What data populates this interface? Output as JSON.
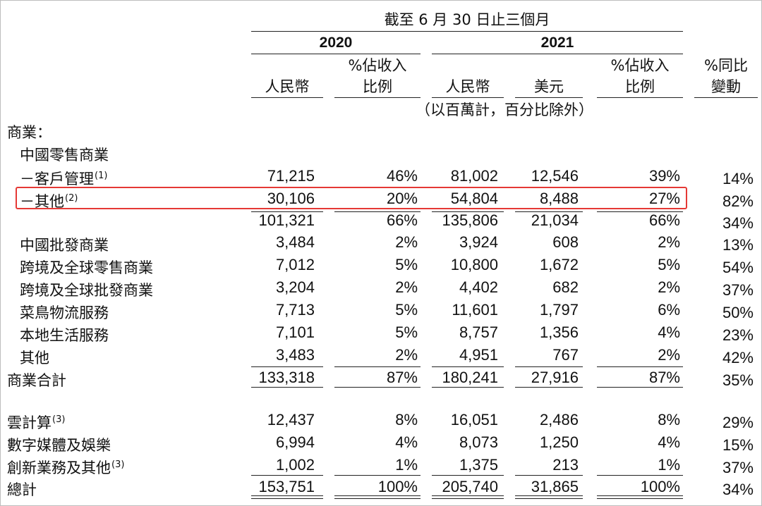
{
  "header": {
    "period": "截至 6 月 30 日止三個月",
    "year_2020": "2020",
    "year_2021": "2021",
    "columns": {
      "rmb_2020": "人民幣",
      "pct_2020": [
        "%佔收入",
        "比例"
      ],
      "rmb_2021": "人民幣",
      "usd_2021": "美元",
      "pct_2021": [
        "%佔收入",
        "比例"
      ],
      "yoy": [
        "%同比",
        "變動"
      ]
    },
    "unit_note": "（以百萬計，百分比除外）"
  },
  "section_commerce": "商業：",
  "subsection_china_retail": "中國零售商業",
  "rows": [
    {
      "label": "－客戶管理",
      "sup": "(1)",
      "rmb_2020": "71,215",
      "pct_2020": "46%",
      "rmb_2021": "81,002",
      "usd_2021": "12,546",
      "pct_2021": "39%",
      "yoy": "14%"
    },
    {
      "label": "－其他",
      "sup": "(2)",
      "rmb_2020": "30,106",
      "pct_2020": "20%",
      "rmb_2021": "54,804",
      "usd_2021": "8,488",
      "pct_2021": "27%",
      "yoy": "82%"
    },
    {
      "label": "",
      "sup": "",
      "rmb_2020": "101,321",
      "pct_2020": "66%",
      "rmb_2021": "135,806",
      "usd_2021": "21,034",
      "pct_2021": "66%",
      "yoy": "34%"
    },
    {
      "label": "中國批發商業",
      "sup": "",
      "rmb_2020": "3,484",
      "pct_2020": "2%",
      "rmb_2021": "3,924",
      "usd_2021": "608",
      "pct_2021": "2%",
      "yoy": "13%"
    },
    {
      "label": "跨境及全球零售商業",
      "sup": "",
      "rmb_2020": "7,012",
      "pct_2020": "5%",
      "rmb_2021": "10,800",
      "usd_2021": "1,672",
      "pct_2021": "5%",
      "yoy": "54%"
    },
    {
      "label": "跨境及全球批發商業",
      "sup": "",
      "rmb_2020": "3,204",
      "pct_2020": "2%",
      "rmb_2021": "4,402",
      "usd_2021": "682",
      "pct_2021": "2%",
      "yoy": "37%"
    },
    {
      "label": "菜鳥物流服務",
      "sup": "",
      "rmb_2020": "7,713",
      "pct_2020": "5%",
      "rmb_2021": "11,601",
      "usd_2021": "1,797",
      "pct_2021": "6%",
      "yoy": "50%"
    },
    {
      "label": "本地生活服務",
      "sup": "",
      "rmb_2020": "7,101",
      "pct_2020": "5%",
      "rmb_2021": "8,757",
      "usd_2021": "1,356",
      "pct_2021": "4%",
      "yoy": "23%"
    },
    {
      "label": "其他",
      "sup": "",
      "rmb_2020": "3,483",
      "pct_2020": "2%",
      "rmb_2021": "4,951",
      "usd_2021": "767",
      "pct_2021": "2%",
      "yoy": "42%"
    },
    {
      "label": "商業合計",
      "sup": "",
      "rmb_2020": "133,318",
      "pct_2020": "87%",
      "rmb_2021": "180,241",
      "usd_2021": "27,916",
      "pct_2021": "87%",
      "yoy": "35%"
    },
    {
      "label": "雲計算",
      "sup": "(3)",
      "rmb_2020": "12,437",
      "pct_2020": "8%",
      "rmb_2021": "16,051",
      "usd_2021": "2,486",
      "pct_2021": "8%",
      "yoy": "29%"
    },
    {
      "label": "數字媒體及娛樂",
      "sup": "",
      "rmb_2020": "6,994",
      "pct_2020": "4%",
      "rmb_2021": "8,073",
      "usd_2021": "1,250",
      "pct_2021": "4%",
      "yoy": "15%"
    },
    {
      "label": "創新業務及其他",
      "sup": "(3)",
      "rmb_2020": "1,002",
      "pct_2020": "1%",
      "rmb_2021": "1,375",
      "usd_2021": "213",
      "pct_2021": "1%",
      "yoy": "37%"
    },
    {
      "label": "總計",
      "sup": "",
      "rmb_2020": "153,751",
      "pct_2020": "100%",
      "rmb_2021": "205,740",
      "usd_2021": "31,865",
      "pct_2021": "100%",
      "yoy": "34%"
    }
  ],
  "highlight_color": "#e53935"
}
